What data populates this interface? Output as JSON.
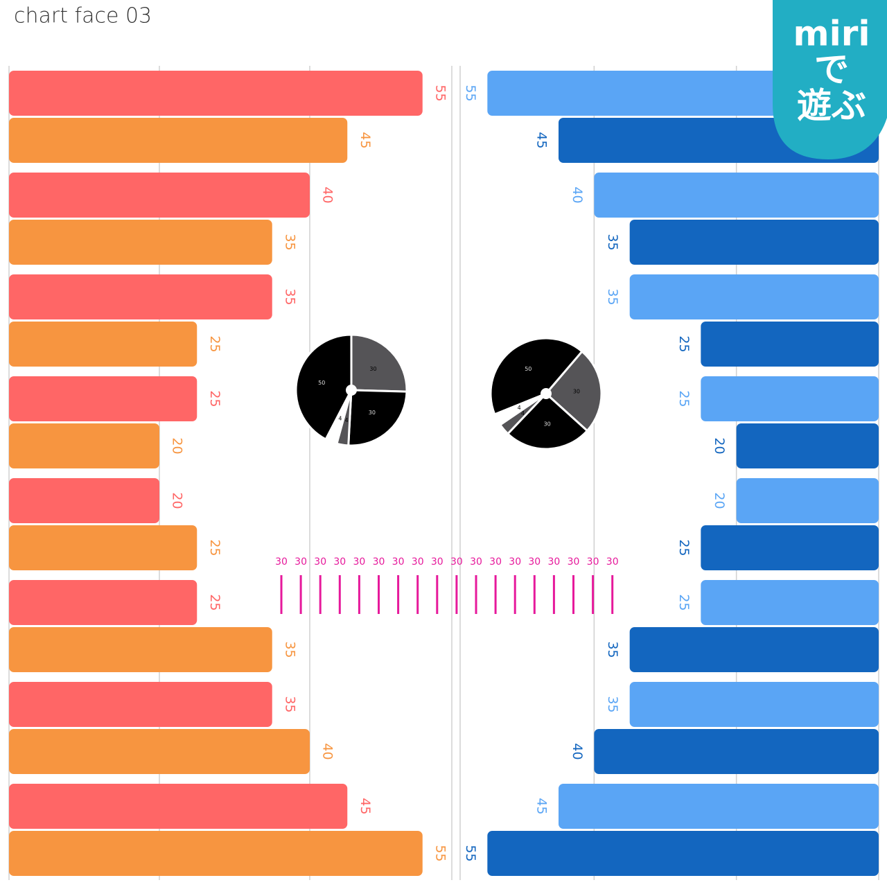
{
  "title": "chart face 03",
  "badge": {
    "lines": [
      "miri",
      "で",
      "遊ぶ"
    ]
  },
  "chart_data": [
    {
      "type": "hbar",
      "direction": "right",
      "values": [
        55,
        45,
        40,
        35,
        35,
        25,
        25,
        20,
        20,
        25,
        25,
        35,
        35,
        40,
        45,
        55
      ],
      "colors": [
        "#ff6666",
        "#f79540"
      ],
      "xlim": [
        0,
        60
      ],
      "xticks": [
        0,
        20,
        40,
        60
      ],
      "grid": true
    },
    {
      "type": "hbar",
      "direction": "left",
      "values": [
        55,
        45,
        40,
        35,
        35,
        25,
        25,
        20,
        20,
        25,
        25,
        35,
        35,
        40,
        45,
        55
      ],
      "colors": [
        "#5aa5f5",
        "#1366bf"
      ],
      "xlim": [
        0,
        60
      ],
      "xticks": [
        0,
        20,
        40,
        60
      ],
      "grid": true
    },
    {
      "type": "pie",
      "values": [
        30,
        30,
        4,
        4,
        50
      ],
      "colors": [
        "#555457",
        "#000000",
        "#555457",
        "#ffffff",
        "#000000"
      ]
    },
    {
      "type": "pie",
      "values": [
        50,
        30,
        30,
        4,
        4
      ],
      "colors": [
        "#000000",
        "#555457",
        "#000000",
        "#555457",
        "#ffffff"
      ]
    },
    {
      "type": "strip",
      "values": [
        30,
        30,
        30,
        30,
        30,
        30,
        30,
        30,
        30,
        30,
        30,
        30,
        30,
        30,
        30,
        30,
        30,
        30
      ],
      "color": "#e6199b"
    }
  ]
}
